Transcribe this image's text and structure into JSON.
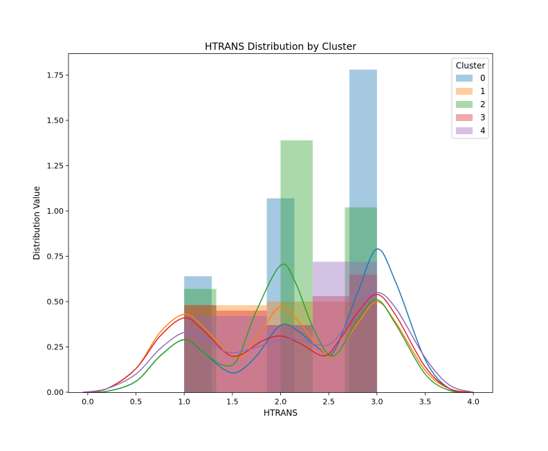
{
  "chart_data": {
    "type": "histogram-kde",
    "title": "HTRANS Distribution by Cluster",
    "xlabel": "HTRANS",
    "ylabel": "Distribution Value",
    "xlim": [
      -0.2,
      4.2
    ],
    "ylim": [
      0,
      1.75
    ],
    "x_ticks": [
      "0.0",
      "0.5",
      "1.0",
      "1.5",
      "2.0",
      "2.5",
      "3.0",
      "3.5",
      "4.0"
    ],
    "y_ticks": [
      "0.00",
      "0.25",
      "0.50",
      "0.75",
      "1.00",
      "1.25",
      "1.50",
      "1.75"
    ],
    "grid": false,
    "legend": {
      "title": "Cluster",
      "position": "top-right"
    },
    "series": [
      {
        "name": "0",
        "color": "#1f77b4",
        "bins": [
          [
            1.0,
            1.286,
            0.64
          ],
          [
            1.857,
            2.143,
            1.07
          ],
          [
            2.714,
            3.0,
            1.78
          ]
        ],
        "kde": [
          [
            -0.05,
            0.0
          ],
          [
            0.2,
            0.005
          ],
          [
            0.5,
            0.06
          ],
          [
            0.75,
            0.2
          ],
          [
            1.0,
            0.29
          ],
          [
            1.2,
            0.22
          ],
          [
            1.4,
            0.13
          ],
          [
            1.55,
            0.11
          ],
          [
            1.75,
            0.2
          ],
          [
            2.0,
            0.37
          ],
          [
            2.2,
            0.33
          ],
          [
            2.4,
            0.24
          ],
          [
            2.55,
            0.22
          ],
          [
            2.8,
            0.55
          ],
          [
            3.0,
            0.79
          ],
          [
            3.2,
            0.6
          ],
          [
            3.5,
            0.18
          ],
          [
            3.75,
            0.02
          ],
          [
            4.0,
            0.0
          ]
        ]
      },
      {
        "name": "1",
        "color": "#ff7f0e",
        "bins": [
          [
            1.0,
            1.333,
            0.48
          ],
          [
            1.333,
            1.857,
            0.48
          ],
          [
            1.857,
            2.333,
            0.5
          ],
          [
            2.333,
            3.0,
            0.5
          ]
        ],
        "kde": [
          [
            -0.05,
            0.0
          ],
          [
            0.2,
            0.02
          ],
          [
            0.5,
            0.13
          ],
          [
            0.75,
            0.33
          ],
          [
            1.0,
            0.43
          ],
          [
            1.2,
            0.36
          ],
          [
            1.45,
            0.22
          ],
          [
            1.6,
            0.2
          ],
          [
            1.8,
            0.34
          ],
          [
            2.0,
            0.47
          ],
          [
            2.2,
            0.38
          ],
          [
            2.4,
            0.25
          ],
          [
            2.55,
            0.2
          ],
          [
            2.8,
            0.38
          ],
          [
            3.0,
            0.5
          ],
          [
            3.2,
            0.38
          ],
          [
            3.5,
            0.12
          ],
          [
            3.75,
            0.02
          ],
          [
            4.0,
            0.0
          ]
        ]
      },
      {
        "name": "2",
        "color": "#2ca02c",
        "bins": [
          [
            1.0,
            1.333,
            0.57
          ],
          [
            2.0,
            2.333,
            1.39
          ],
          [
            2.667,
            3.0,
            1.02
          ]
        ],
        "kde": [
          [
            -0.05,
            0.0
          ],
          [
            0.2,
            0.005
          ],
          [
            0.5,
            0.06
          ],
          [
            0.75,
            0.2
          ],
          [
            1.0,
            0.29
          ],
          [
            1.2,
            0.22
          ],
          [
            1.4,
            0.15
          ],
          [
            1.55,
            0.18
          ],
          [
            1.75,
            0.45
          ],
          [
            2.0,
            0.7
          ],
          [
            2.15,
            0.61
          ],
          [
            2.35,
            0.34
          ],
          [
            2.55,
            0.2
          ],
          [
            2.8,
            0.4
          ],
          [
            3.0,
            0.51
          ],
          [
            3.2,
            0.37
          ],
          [
            3.5,
            0.1
          ],
          [
            3.75,
            0.01
          ],
          [
            4.0,
            0.0
          ]
        ]
      },
      {
        "name": "3",
        "color": "#d62728",
        "bins": [
          [
            1.0,
            1.333,
            0.48
          ],
          [
            1.333,
            1.857,
            0.45
          ],
          [
            1.857,
            2.333,
            0.37
          ],
          [
            2.333,
            2.714,
            0.53
          ],
          [
            2.714,
            3.0,
            0.65
          ]
        ],
        "kde": [
          [
            -0.05,
            0.0
          ],
          [
            0.2,
            0.02
          ],
          [
            0.5,
            0.13
          ],
          [
            0.75,
            0.31
          ],
          [
            1.0,
            0.41
          ],
          [
            1.2,
            0.34
          ],
          [
            1.45,
            0.21
          ],
          [
            1.6,
            0.21
          ],
          [
            1.8,
            0.28
          ],
          [
            2.0,
            0.31
          ],
          [
            2.2,
            0.27
          ],
          [
            2.45,
            0.2
          ],
          [
            2.6,
            0.28
          ],
          [
            2.8,
            0.44
          ],
          [
            3.0,
            0.54
          ],
          [
            3.2,
            0.42
          ],
          [
            3.5,
            0.14
          ],
          [
            3.75,
            0.02
          ],
          [
            4.0,
            0.0
          ]
        ]
      },
      {
        "name": "4",
        "color": "#9467bd",
        "bins": [
          [
            1.0,
            1.333,
            0.42
          ],
          [
            1.333,
            1.857,
            0.42
          ],
          [
            1.857,
            2.333,
            0.37
          ],
          [
            2.333,
            2.714,
            0.72
          ],
          [
            2.714,
            3.0,
            0.72
          ]
        ],
        "kde": [
          [
            -0.05,
            0.0
          ],
          [
            0.2,
            0.02
          ],
          [
            0.5,
            0.1
          ],
          [
            0.75,
            0.24
          ],
          [
            1.0,
            0.33
          ],
          [
            1.2,
            0.3
          ],
          [
            1.45,
            0.22
          ],
          [
            1.7,
            0.24
          ],
          [
            2.0,
            0.29
          ],
          [
            2.2,
            0.29
          ],
          [
            2.4,
            0.26
          ],
          [
            2.55,
            0.28
          ],
          [
            2.8,
            0.45
          ],
          [
            3.0,
            0.55
          ],
          [
            3.2,
            0.46
          ],
          [
            3.5,
            0.19
          ],
          [
            3.75,
            0.04
          ],
          [
            4.0,
            0.0
          ]
        ]
      }
    ]
  }
}
